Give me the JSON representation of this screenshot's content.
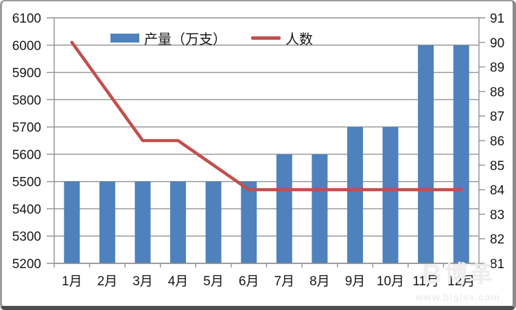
{
  "chart_data": {
    "type": "bar",
    "subtype": "combo-bar-line-dual-axis",
    "title": "",
    "categories": [
      "1月",
      "2月",
      "3月",
      "4月",
      "5月",
      "6月",
      "7月",
      "8月",
      "9月",
      "10月",
      "11月",
      "12月"
    ],
    "series": [
      {
        "name": "产量（万支）",
        "chart_type": "bar",
        "axis": "left",
        "color": "#4f81bd",
        "values": [
          5500,
          5500,
          5500,
          5500,
          5500,
          5500,
          5600,
          5600,
          5700,
          5700,
          6000,
          6000
        ]
      },
      {
        "name": "人数",
        "chart_type": "line",
        "axis": "right",
        "color": "#c0504d",
        "values": [
          90,
          88,
          86,
          86,
          85,
          84,
          84,
          84,
          84,
          84,
          84,
          84
        ]
      }
    ],
    "left_axis": {
      "min": 5200,
      "max": 6100,
      "tick_step": 100,
      "tick_labels": [
        "6100",
        "6000",
        "5900",
        "5800",
        "5700",
        "5600",
        "5500",
        "5400",
        "5300",
        "5200"
      ]
    },
    "right_axis": {
      "min": 81,
      "max": 91,
      "tick_step": 1,
      "tick_labels": [
        "91",
        "90",
        "89",
        "88",
        "87",
        "86",
        "85",
        "84",
        "83",
        "82",
        "81"
      ]
    },
    "grid": true,
    "legend_position": "top-center",
    "styles": {
      "grid_color": "#8f8f8f",
      "axis_color": "#8f8f8f",
      "text_color": "#161616",
      "background": "#ffffff"
    }
  },
  "watermark": {
    "logo_letter": "B",
    "logo_text": "博革",
    "url": "www.biglss.com"
  }
}
